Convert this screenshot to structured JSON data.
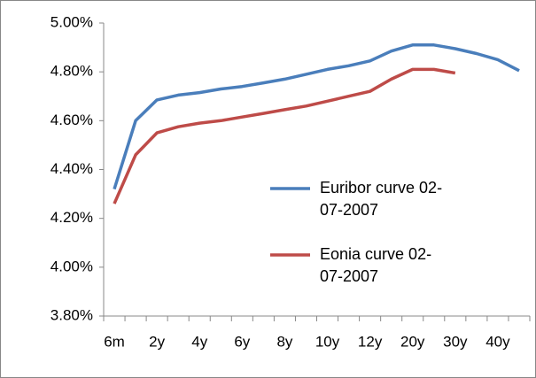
{
  "chart_data": {
    "type": "line",
    "categories": [
      "6m",
      null,
      "2y",
      null,
      "4y",
      null,
      "6y",
      null,
      "8y",
      null,
      "10y",
      null,
      "12y",
      null,
      "20y",
      null,
      "30y",
      null,
      "40y",
      null
    ],
    "series": [
      {
        "name": "Euribor curve 02-07-2007",
        "color": "#4a7ebb",
        "values": [
          4.32,
          4.6,
          4.685,
          4.705,
          4.715,
          4.73,
          4.74,
          4.755,
          4.77,
          4.79,
          4.81,
          4.825,
          4.845,
          4.885,
          4.91,
          4.91,
          4.895,
          4.875,
          4.85,
          4.805
        ]
      },
      {
        "name": "Eonia curve 02-07-2007",
        "color": "#be4b48",
        "values": [
          4.26,
          4.46,
          4.55,
          4.575,
          4.59,
          4.6,
          4.615,
          4.63,
          4.645,
          4.66,
          4.68,
          4.7,
          4.72,
          4.77,
          4.81,
          4.81,
          4.795,
          null,
          null,
          null
        ]
      }
    ],
    "ylim": [
      3.8,
      5.0
    ],
    "yticks": [
      {
        "value": 3.8,
        "label": "3.80%"
      },
      {
        "value": 4.0,
        "label": "4.00%"
      },
      {
        "value": 4.2,
        "label": "4.20%"
      },
      {
        "value": 4.4,
        "label": "4.40%"
      },
      {
        "value": 4.6,
        "label": "4.60%"
      },
      {
        "value": 4.8,
        "label": "4.80%"
      },
      {
        "value": 5.0,
        "label": "5.00%"
      }
    ]
  }
}
